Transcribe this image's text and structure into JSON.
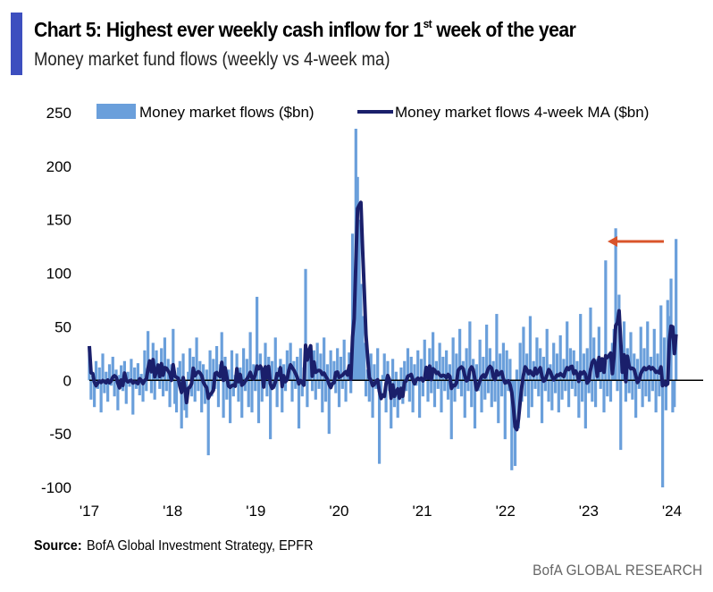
{
  "header": {
    "title_main": "Chart 5: Highest ever weekly cash inflow for 1",
    "title_sup": "st",
    "title_tail": " week of the year",
    "subtitle": "Money market fund flows (weekly vs 4-week ma)",
    "accent_color": "#3d4fbf"
  },
  "footer": {
    "source_label": "Source:",
    "source_text": "BofA Global Investment Strategy, EPFR",
    "brand": "BofA GLOBAL RESEARCH"
  },
  "chart_data": {
    "type": "bar",
    "title": "Chart 5: Highest ever weekly cash inflow for 1st week of the year",
    "subtitle": "Money market fund flows (weekly vs 4-week ma)",
    "xlabel": "",
    "ylabel": "",
    "ylim": [
      -100,
      250
    ],
    "yticks": [
      250,
      200,
      150,
      100,
      50,
      0,
      -50,
      -100
    ],
    "ytick_labels": [
      "250",
      "200",
      "150",
      "100",
      "50",
      "0",
      "-50",
      "-100"
    ],
    "x_start_year": 2017,
    "x_end_year": 2024.05,
    "xtick_years": [
      2017,
      2018,
      2019,
      2020,
      2021,
      2022,
      2023,
      2024
    ],
    "xtick_labels": [
      "'17",
      "'18",
      "'19",
      "'20",
      "'21",
      "'22",
      "'23",
      "'24"
    ],
    "grid": false,
    "legend": {
      "placement": "top",
      "entries": [
        {
          "name": "Money market flows ($bn)",
          "type": "bar",
          "color": "#6a9fdb"
        },
        {
          "name": "Money market flows 4-week MA ($bn)",
          "type": "line",
          "color": "#1a1f6b"
        }
      ]
    },
    "annotation": {
      "type": "arrow",
      "from": {
        "year": 2024.02,
        "value": 130
      },
      "to": {
        "year": 2023.35,
        "value": 130
      },
      "color": "#d9542b",
      "meaning": "latest week compared with prior high"
    },
    "series": [
      {
        "name": "Money market flows ($bn)",
        "type": "bar",
        "color": "#6a9fdb",
        "values": [
          32,
          -18,
          5,
          -25,
          18,
          -8,
          12,
          -30,
          25,
          -12,
          8,
          -20,
          15,
          -5,
          22,
          -15,
          10,
          -28,
          5,
          14,
          -10,
          18,
          -22,
          8,
          -6,
          20,
          -32,
          12,
          -8,
          16,
          -14,
          6,
          -20,
          28,
          -10,
          46,
          8,
          -12,
          35,
          -18,
          28,
          12,
          -8,
          30,
          -15,
          40,
          -10,
          20,
          -25,
          15,
          48,
          -22,
          -30,
          12,
          18,
          -45,
          25,
          -28,
          -35,
          8,
          30,
          -15,
          22,
          -20,
          40,
          -10,
          18,
          -30,
          15,
          -22,
          10,
          -70,
          28,
          -15,
          20,
          -8,
          32,
          -25,
          15,
          45,
          -35,
          22,
          -18,
          10,
          -40,
          28,
          -15,
          5,
          25,
          -20,
          12,
          -35,
          30,
          -10,
          20,
          -25,
          45,
          -30,
          15,
          -10,
          78,
          -40,
          25,
          -20,
          10,
          35,
          -15,
          22,
          -55,
          18,
          -8,
          40,
          -25,
          12,
          20,
          -30,
          15,
          -10,
          28,
          5,
          35,
          -20,
          18,
          -8,
          22,
          -45,
          30,
          -15,
          12,
          104,
          -25,
          20,
          30,
          -10,
          28,
          -18,
          35,
          -8,
          25,
          -30,
          40,
          -20,
          15,
          -50,
          28,
          -5,
          18,
          -12,
          30,
          -25,
          22,
          -8,
          38,
          -20,
          10,
          26,
          -12,
          137,
          80,
          235,
          190,
          150,
          90,
          60,
          35,
          -15,
          10,
          -20,
          25,
          -35,
          15,
          -8,
          30,
          -78,
          -12,
          5,
          25,
          -30,
          18,
          -10,
          -45,
          20,
          -25,
          8,
          -35,
          -15,
          12,
          -22,
          18,
          -10,
          30,
          -20,
          22,
          -30,
          15,
          -5,
          28,
          -35,
          20,
          -15,
          38,
          5,
          -20,
          30,
          -12,
          45,
          -25,
          18,
          -8,
          35,
          -30,
          22,
          -10,
          28,
          -18,
          15,
          -55,
          40,
          -20,
          25,
          -8,
          48,
          -15,
          18,
          -35,
          30,
          -10,
          55,
          -25,
          20,
          -45,
          15,
          -10,
          38,
          -30,
          22,
          -18,
          52,
          -12,
          30,
          -25,
          18,
          -20,
          62,
          -40,
          25,
          -15,
          35,
          -55,
          28,
          -10,
          20,
          -84,
          -30,
          -80,
          10,
          -45,
          35,
          -20,
          50,
          -15,
          25,
          -35,
          60,
          -25,
          18,
          -8,
          40,
          -15,
          30,
          -40,
          22,
          -10,
          48,
          -20,
          15,
          -28,
          35,
          -12,
          25,
          -30,
          42,
          -18,
          20,
          -10,
          55,
          -25,
          30,
          -8,
          28,
          -15,
          18,
          -35,
          62,
          -20,
          25,
          -45,
          30,
          -12,
          68,
          -20,
          40,
          -25,
          20,
          50,
          -8,
          18,
          -30,
          112,
          -15,
          25,
          -20,
          35,
          48,
          142,
          -10,
          80,
          -65,
          25,
          55,
          -20,
          30,
          -12,
          45,
          -18,
          25,
          -35,
          20,
          -8,
          50,
          -25,
          30,
          -15,
          55,
          -20,
          22,
          -10,
          48,
          -30,
          25,
          -15,
          70,
          -100,
          40,
          -28,
          75,
          60,
          95,
          -30,
          -25,
          132
        ]
      },
      {
        "name": "Money market flows 4-week MA ($bn)",
        "type": "line",
        "color": "#1a1f6b",
        "values": "4-week trailing average of weekly flows"
      }
    ]
  }
}
